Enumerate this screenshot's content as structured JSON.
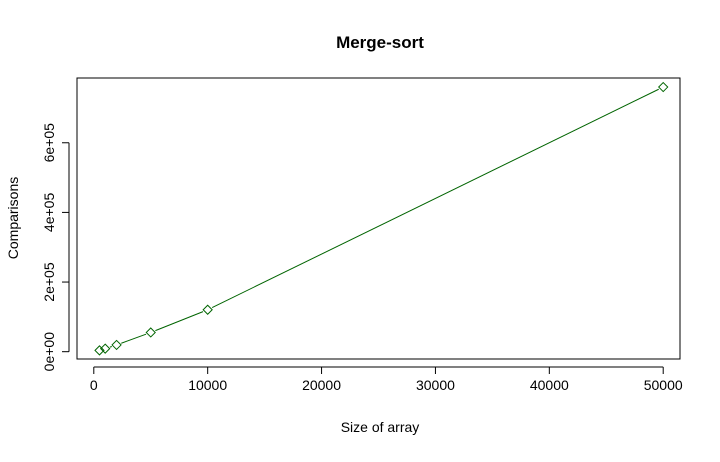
{
  "chart_data": {
    "type": "line",
    "title": "Merge-sort",
    "xlabel": "Size of array",
    "ylabel": "Comparisons",
    "xlim": [
      -1475,
      51475
    ],
    "ylim": [
      -21000,
      786000
    ],
    "x_ticks": [
      {
        "value": 0,
        "label": "0"
      },
      {
        "value": 10000,
        "label": "10000"
      },
      {
        "value": 20000,
        "label": "20000"
      },
      {
        "value": 30000,
        "label": "30000"
      },
      {
        "value": 40000,
        "label": "40000"
      },
      {
        "value": 50000,
        "label": "50000"
      }
    ],
    "y_ticks": [
      {
        "value": 0,
        "label": "0e+00"
      },
      {
        "value": 200000,
        "label": "2e+05"
      },
      {
        "value": 400000,
        "label": "4e+05"
      },
      {
        "value": 600000,
        "label": "6e+05"
      }
    ],
    "series": [
      {
        "color": "#006400",
        "marker": "diamond-open",
        "line": true,
        "x": [
          500,
          1000,
          2000,
          5000,
          10000,
          50000
        ],
        "y": [
          3800,
          8700,
          19400,
          55200,
          120400,
          760000
        ]
      }
    ],
    "grid": false,
    "legend": "none"
  }
}
